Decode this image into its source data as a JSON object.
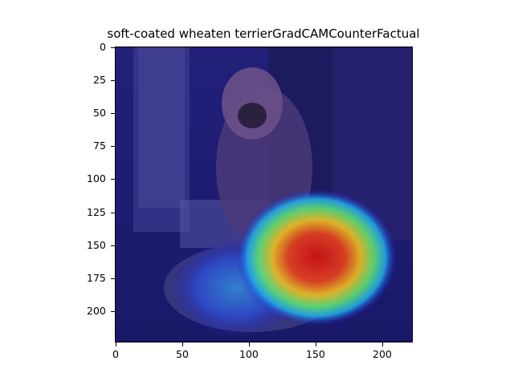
{
  "figure": {
    "title": "soft-coated wheaten terrierGradCAMCounterFactual",
    "image_description_icon": "dog-and-cat-heatmap-overlay",
    "colormap": "jet",
    "x_axis": {
      "ticks": [
        "0",
        "50",
        "100",
        "150",
        "200"
      ],
      "range": [
        0,
        224
      ]
    },
    "y_axis": {
      "ticks": [
        "0",
        "25",
        "50",
        "75",
        "100",
        "125",
        "150",
        "175",
        "200"
      ],
      "range": [
        0,
        224
      ],
      "inverted": true
    },
    "heatmap_peak_color": "#e8201a",
    "background_tint": "#1a1a8a"
  }
}
